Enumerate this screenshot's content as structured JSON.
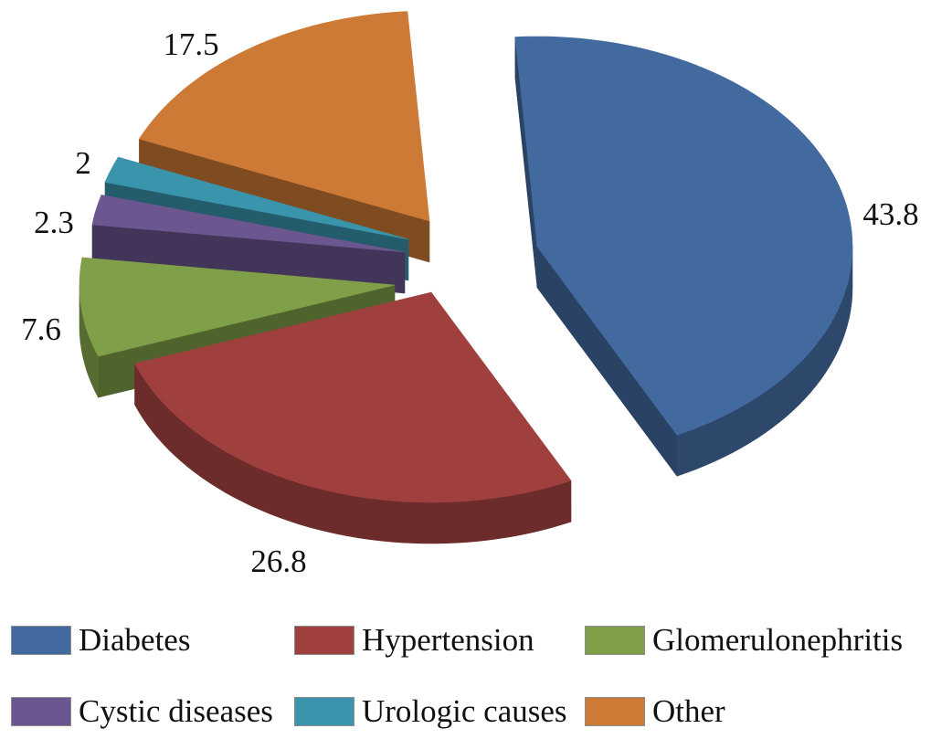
{
  "chart_data": {
    "type": "pie",
    "three_d": true,
    "exploded": true,
    "categories": [
      "Diabetes",
      "Hypertension",
      "Glomerulonephritis",
      "Cystic diseases",
      "Urologic causes",
      "Other"
    ],
    "values": [
      43.8,
      26.8,
      7.6,
      2.3,
      2,
      17.5
    ],
    "colors": [
      "#436A9F",
      "#9F403F",
      "#809F49",
      "#6B5690",
      "#3A94AC",
      "#CD7A37"
    ],
    "legend_position": "bottom"
  }
}
